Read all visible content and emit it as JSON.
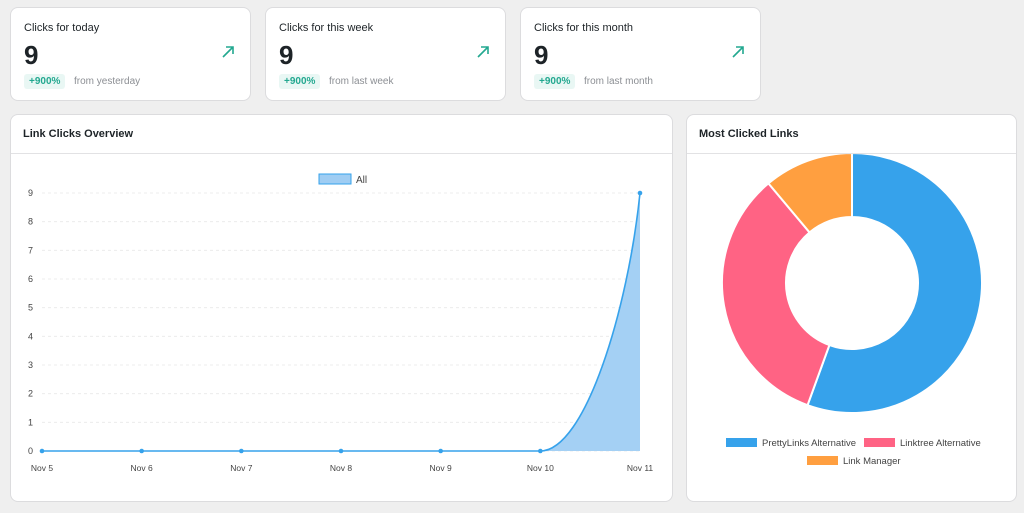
{
  "stats": [
    {
      "label": "Clicks for today",
      "value": "9",
      "badge": "+900%",
      "sub": "from yesterday"
    },
    {
      "label": "Clicks for this week",
      "value": "9",
      "badge": "+900%",
      "sub": "from last week"
    },
    {
      "label": "Clicks for this month",
      "value": "9",
      "badge": "+900%",
      "sub": "from last month"
    }
  ],
  "overview": {
    "title": "Link Clicks Overview"
  },
  "most_clicked": {
    "title": "Most Clicked Links"
  },
  "colors": {
    "accent_teal": "#23a890",
    "line_blue": "#36a2eb",
    "area_blue": "#9fcdf3",
    "pink": "#ff6384",
    "orange": "#ff9f40"
  },
  "chart_data": [
    {
      "type": "area",
      "title": "",
      "legend": {
        "position": "top-center",
        "entries": [
          "All"
        ]
      },
      "categories": [
        "Nov 5",
        "Nov 6",
        "Nov 7",
        "Nov 8",
        "Nov 9",
        "Nov 10",
        "Nov 11"
      ],
      "series": [
        {
          "name": "All",
          "values": [
            0,
            0,
            0,
            0,
            0,
            0,
            9
          ]
        }
      ],
      "ylim": [
        0,
        9
      ],
      "yticks": [
        "0",
        "1",
        "2",
        "3",
        "4",
        "5",
        "6",
        "7",
        "8",
        "9"
      ],
      "grid": true
    },
    {
      "type": "pie",
      "donut": true,
      "legend": {
        "position": "bottom",
        "entries": [
          "PrettyLinks Alternative",
          "Linktree Alternative",
          "Link Manager"
        ]
      },
      "slices": [
        {
          "label": "PrettyLinks Alternative",
          "value": 5,
          "color": "#36a2eb"
        },
        {
          "label": "Linktree Alternative",
          "value": 3,
          "color": "#ff6384"
        },
        {
          "label": "Link Manager",
          "value": 1,
          "color": "#ff9f40"
        }
      ]
    }
  ]
}
